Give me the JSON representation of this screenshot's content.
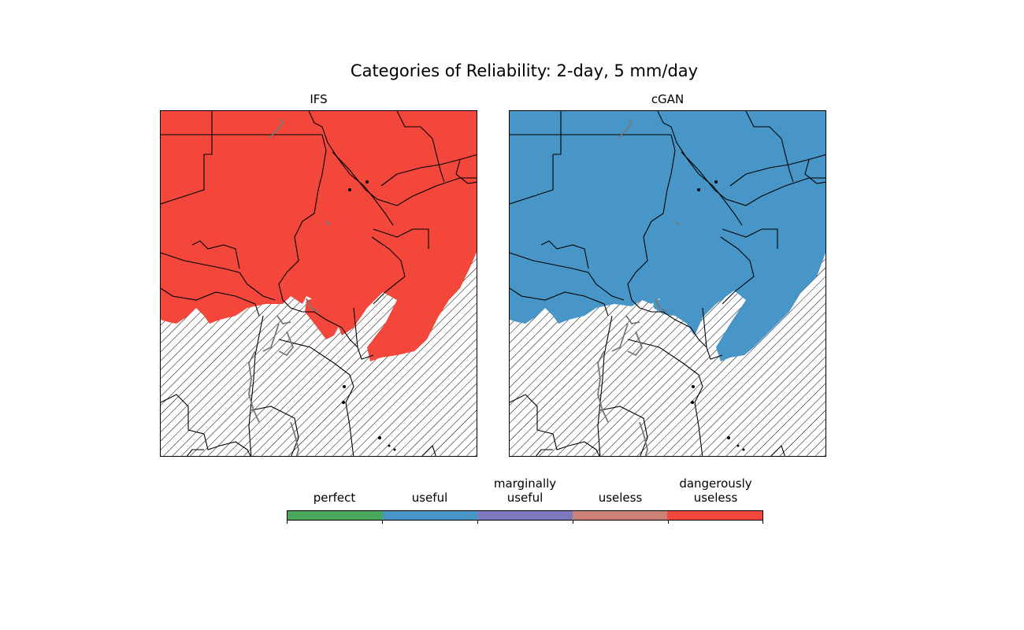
{
  "figure": {
    "title": "Categories of Reliability: 2-day, 5 mm/day"
  },
  "panels": [
    {
      "title": "IFS",
      "region_color": "#f2473a",
      "region_category": "dangerously useless"
    },
    {
      "title": "cGAN",
      "region_color": "#4896c8",
      "region_category": "useful"
    }
  ],
  "colorbar": {
    "categories": [
      {
        "label": "perfect",
        "color": "#49a65b"
      },
      {
        "label": "useful",
        "color": "#4896c8"
      },
      {
        "label": "marginally\nuseful",
        "color": "#7e78bc"
      },
      {
        "label": "useless",
        "color": "#cc8277"
      },
      {
        "label": "dangerously\nuseless",
        "color": "#f2473a"
      }
    ]
  },
  "hatch_meaning_color": "#000000"
}
